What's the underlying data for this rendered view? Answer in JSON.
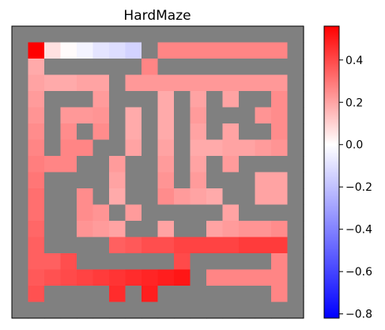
{
  "chart_data": {
    "type": "heatmap",
    "title": "HardMaze",
    "xlabel": "",
    "ylabel": "",
    "grid": false,
    "rows": 18,
    "cols": 18,
    "wall_color": "#808080",
    "colormap": "bwr",
    "vmin": -0.82,
    "vmax": 0.56,
    "colorbar_ticks": [
      0.4,
      0.2,
      0.0,
      -0.2,
      -0.4,
      -0.6,
      -0.8
    ],
    "colorbar_tick_labels": [
      "0.4",
      "0.2",
      "0.0",
      "−0.2",
      "−0.4",
      "−0.6",
      "−0.8"
    ],
    "walls": [
      "##################",
      "#.......#........#",
      "#.######.#########",
      "#.....#..........#",
      "#.###.###.#.#.##.#",
      "#.#...#.#.#.###..#",
      "#.#.#.#.#.#.#.##.#",
      "#.#..##.#.#......#",
      "#...##.##.#.#.####",
      "#.####.##.#.###..#",
      "#.##.#.##....##..#",
      "#.##..#.#####.####",
      "#.##...##.##.....#",
      "#.####...........#",
      "#...######.#####.#",
      "#..........#.....#",
      "#.####.#.#######.#",
      "##################"
    ],
    "values": [
      [
        null,
        null,
        null,
        null,
        null,
        null,
        null,
        null,
        null,
        null,
        null,
        null,
        null,
        null,
        null,
        null,
        null,
        null
      ],
      [
        null,
        0.56,
        -0.05,
        -0.12,
        -0.16,
        -0.2,
        -0.22,
        -0.25,
        null,
        0.2,
        0.2,
        0.2,
        0.2,
        0.2,
        0.2,
        0.2,
        0.2,
        null
      ],
      [
        null,
        0.1,
        null,
        null,
        null,
        null,
        null,
        null,
        0.2,
        null,
        null,
        null,
        null,
        null,
        null,
        null,
        null,
        null
      ],
      [
        null,
        0.12,
        0.1,
        0.1,
        0.12,
        0.12,
        null,
        0.15,
        0.15,
        0.15,
        0.15,
        0.15,
        0.15,
        0.15,
        0.15,
        0.15,
        0.15,
        null
      ],
      [
        null,
        0.14,
        null,
        null,
        null,
        0.14,
        null,
        null,
        null,
        0.1,
        null,
        0.12,
        null,
        0.12,
        null,
        null,
        0.18,
        null
      ],
      [
        null,
        0.16,
        null,
        0.15,
        0.15,
        0.16,
        null,
        0.1,
        null,
        0.1,
        null,
        0.14,
        null,
        null,
        null,
        0.16,
        0.18,
        null
      ],
      [
        null,
        0.18,
        null,
        0.18,
        null,
        0.18,
        null,
        0.1,
        null,
        0.1,
        null,
        0.12,
        null,
        0.12,
        null,
        null,
        0.18,
        null
      ],
      [
        null,
        0.2,
        null,
        0.2,
        0.2,
        null,
        null,
        0.12,
        null,
        0.12,
        null,
        0.1,
        0.1,
        0.12,
        0.12,
        0.14,
        0.16,
        null
      ],
      [
        null,
        0.22,
        0.2,
        0.2,
        null,
        null,
        0.14,
        null,
        null,
        0.14,
        null,
        0.12,
        null,
        0.14,
        null,
        null,
        null,
        null
      ],
      [
        null,
        0.24,
        null,
        null,
        null,
        null,
        0.12,
        null,
        null,
        0.16,
        null,
        0.14,
        null,
        null,
        null,
        0.12,
        0.12,
        null
      ],
      [
        null,
        0.26,
        null,
        null,
        0.18,
        null,
        0.1,
        null,
        null,
        0.18,
        0.14,
        0.12,
        0.1,
        null,
        null,
        0.12,
        0.12,
        null
      ],
      [
        null,
        0.26,
        null,
        null,
        0.18,
        0.16,
        null,
        0.14,
        null,
        null,
        null,
        null,
        null,
        0.12,
        null,
        null,
        null,
        null
      ],
      [
        null,
        0.28,
        null,
        null,
        0.16,
        0.14,
        0.12,
        null,
        null,
        0.12,
        null,
        null,
        0.12,
        0.14,
        0.16,
        0.16,
        0.18,
        null
      ],
      [
        null,
        0.3,
        null,
        null,
        null,
        null,
        0.3,
        0.32,
        0.35,
        0.35,
        0.38,
        0.38,
        0.38,
        0.38,
        0.4,
        0.4,
        0.4,
        null
      ],
      [
        null,
        0.3,
        0.3,
        0.35,
        null,
        null,
        null,
        null,
        null,
        null,
        0.36,
        null,
        null,
        null,
        null,
        null,
        0.2,
        null
      ],
      [
        null,
        0.32,
        0.34,
        0.36,
        0.38,
        0.4,
        0.42,
        0.44,
        0.46,
        0.48,
        0.5,
        null,
        0.2,
        0.2,
        0.2,
        0.2,
        0.2,
        null
      ],
      [
        null,
        0.34,
        null,
        null,
        null,
        null,
        0.44,
        null,
        0.48,
        null,
        null,
        null,
        null,
        null,
        null,
        null,
        0.2,
        null
      ],
      [
        null,
        null,
        null,
        null,
        null,
        null,
        null,
        null,
        null,
        null,
        null,
        null,
        null,
        null,
        null,
        null,
        null,
        null
      ]
    ]
  }
}
